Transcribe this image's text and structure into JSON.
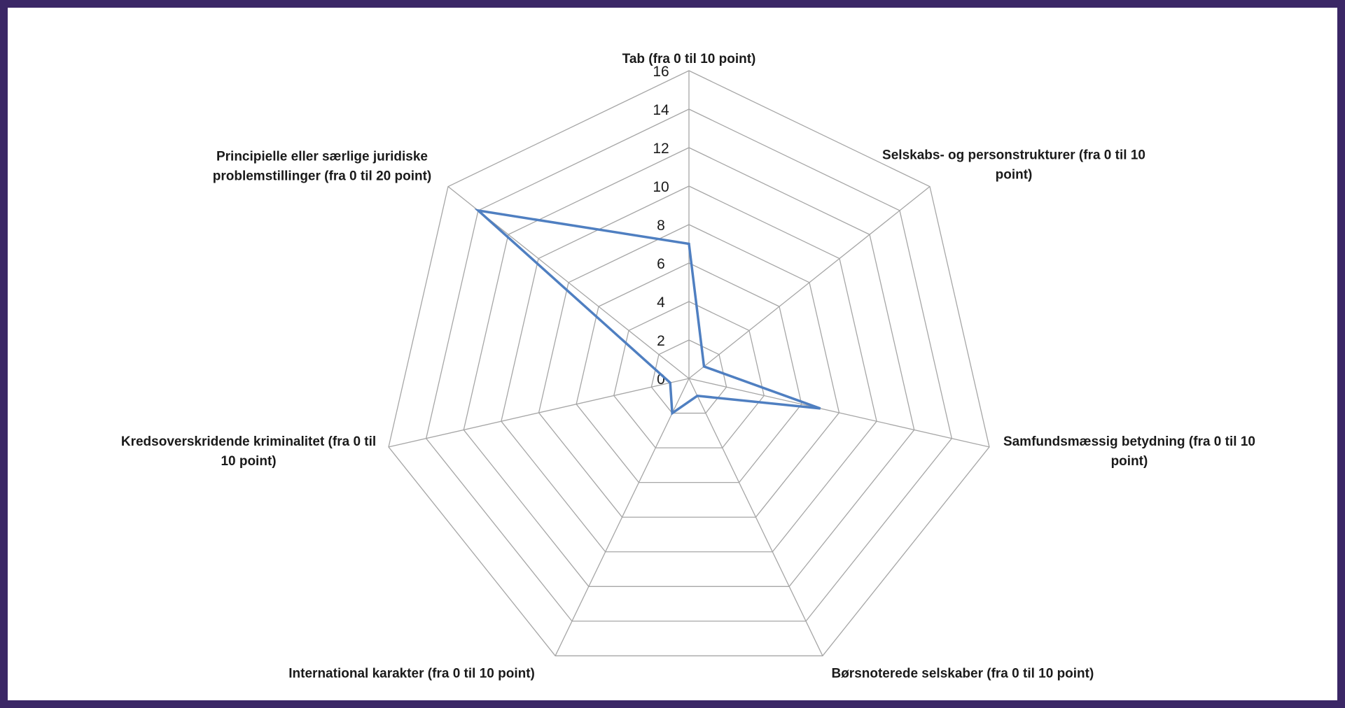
{
  "chart_data": {
    "type": "radar",
    "title": "",
    "axes": [
      {
        "label": [
          "Tab (fra 0 til 10 point)"
        ],
        "align": "middle",
        "dx": 0,
        "dy": -18
      },
      {
        "label": [
          "Selskabs- og personstrukturer  (fra 0 til 10",
          "point)"
        ],
        "align": "middle",
        "dx": 120,
        "dy": -32
      },
      {
        "label": [
          "Samfundsmæssig betydning (fra 0 til 10",
          "point)"
        ],
        "align": "middle",
        "dx": 200,
        "dy": 5
      },
      {
        "label": [
          "Børsnoterede selskaber (fra 0 til 10 point)"
        ],
        "align": "middle",
        "dx": 200,
        "dy": 24
      },
      {
        "label": [
          "International  karakter (fra 0 til 10 point)"
        ],
        "align": "middle",
        "dx": -205,
        "dy": 24
      },
      {
        "label": [
          "Kredsoverskridende kriminalitet (fra 0 til",
          "10 point)"
        ],
        "align": "middle",
        "dx": -200,
        "dy": 5
      },
      {
        "label": [
          "Principielle eller særlige juridiske",
          "problemstillinger (fra 0 til 20 point)"
        ],
        "align": "middle",
        "dx": -180,
        "dy": -30
      }
    ],
    "ticks": [
      0,
      2,
      4,
      6,
      8,
      10,
      12,
      14,
      16
    ],
    "rmax": 16,
    "series": [
      {
        "name": "",
        "values": [
          7,
          1,
          7,
          1,
          2,
          1,
          14
        ],
        "color": "#4f7fc1"
      }
    ],
    "grid_color": "#a6a6a6",
    "frame_color": "#3b2766"
  }
}
